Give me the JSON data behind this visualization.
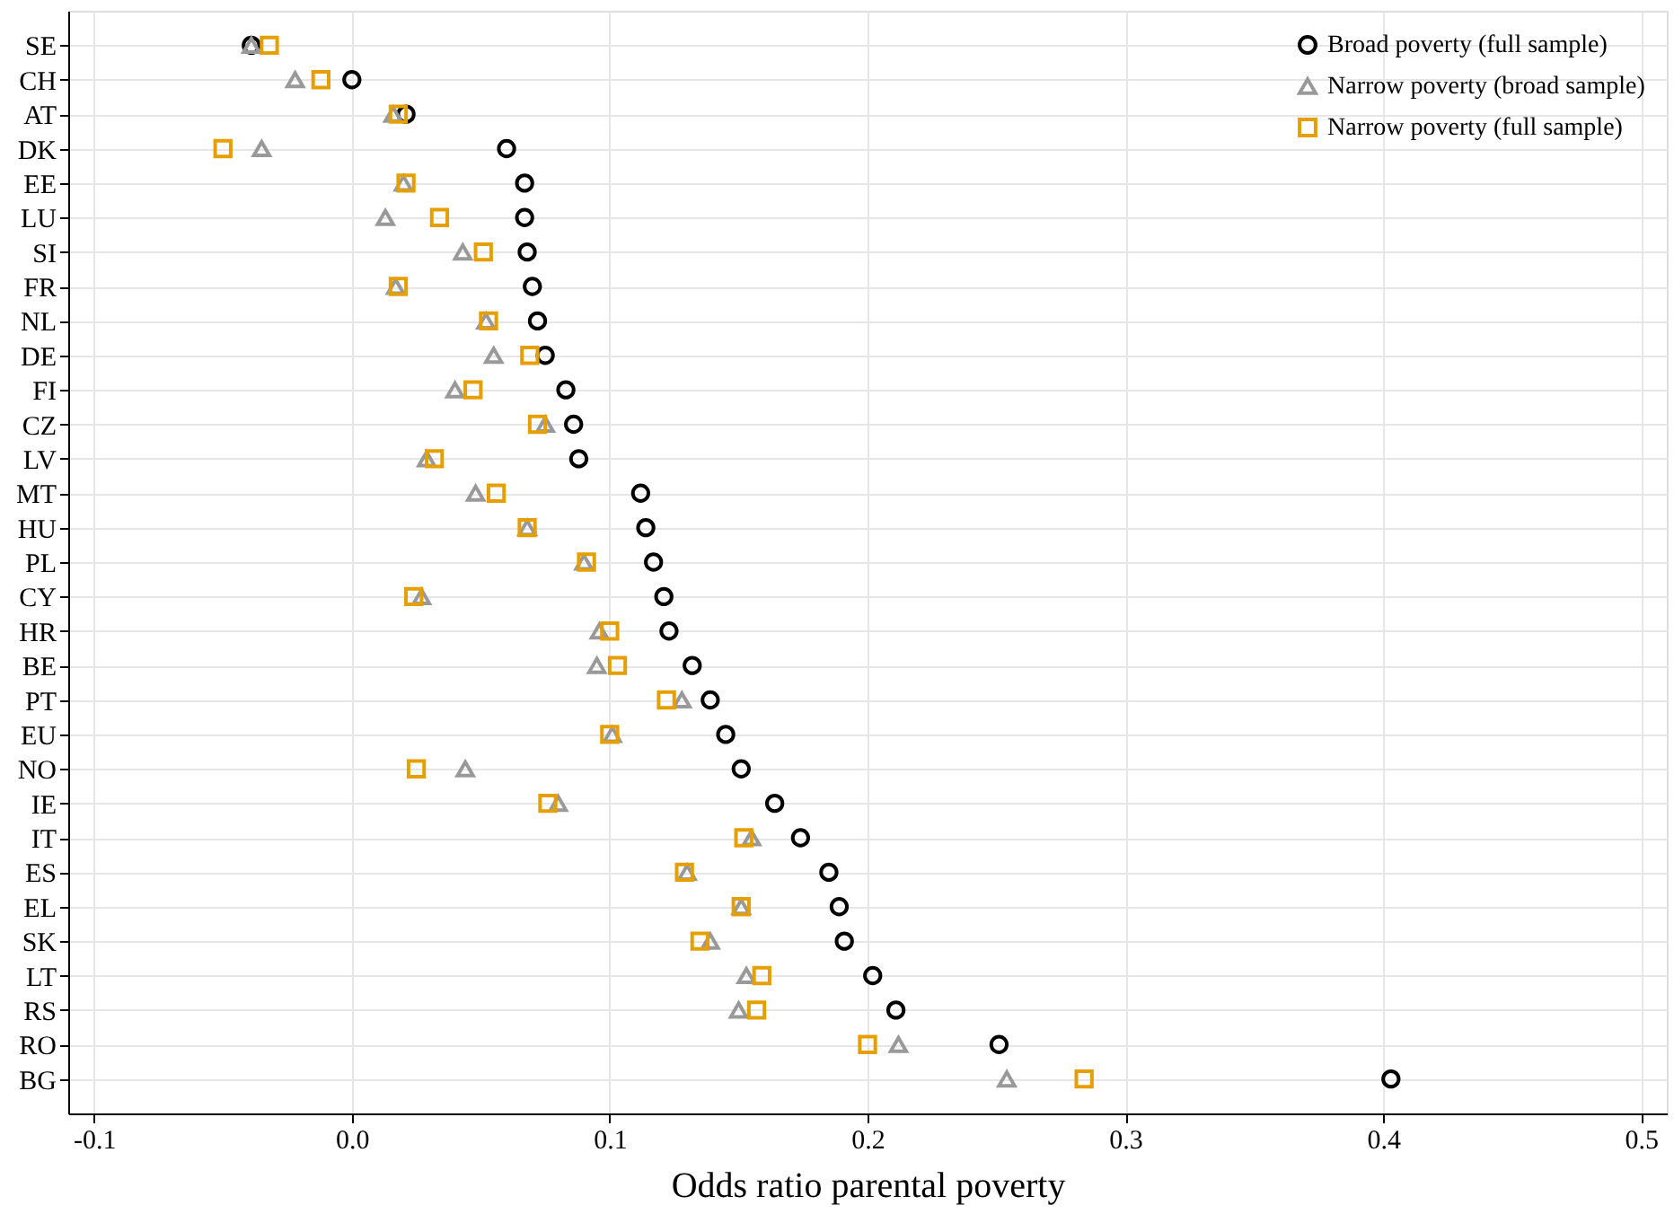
{
  "chart_data": {
    "type": "scatter",
    "xlabel": "Odds ratio parental poverty",
    "categories": [
      "SE",
      "CH",
      "AT",
      "DK",
      "EE",
      "LU",
      "SI",
      "FR",
      "NL",
      "DE",
      "FI",
      "CZ",
      "LV",
      "MT",
      "HU",
      "PL",
      "CY",
      "HR",
      "BE",
      "PT",
      "EU",
      "NO",
      "IE",
      "IT",
      "ES",
      "EL",
      "SK",
      "LT",
      "RS",
      "RO",
      "BG"
    ],
    "series": [
      {
        "name": "Broad poverty (full sample)",
        "color": "#000000",
        "marker": "circle",
        "values": [
          -0.039,
          0.0,
          0.021,
          0.06,
          0.067,
          0.067,
          0.068,
          0.07,
          0.072,
          0.075,
          0.083,
          0.086,
          0.088,
          0.112,
          0.114,
          0.117,
          0.121,
          0.123,
          0.132,
          0.139,
          0.145,
          0.151,
          0.164,
          0.174,
          0.185,
          0.189,
          0.191,
          0.202,
          0.211,
          0.251,
          0.403
        ]
      },
      {
        "name": "Narrow poverty (broad sample)",
        "color": "#999999",
        "marker": "triangle",
        "values": [
          -0.039,
          -0.022,
          0.016,
          -0.035,
          0.02,
          0.013,
          0.043,
          0.017,
          0.052,
          0.055,
          0.04,
          0.075,
          0.029,
          0.048,
          0.068,
          0.09,
          0.027,
          0.096,
          0.095,
          0.128,
          0.101,
          0.044,
          0.08,
          0.155,
          0.13,
          0.151,
          0.139,
          0.153,
          0.15,
          0.212,
          0.254
        ]
      },
      {
        "name": "Narrow poverty (full sample)",
        "color": "#e69f00",
        "marker": "square",
        "values": [
          -0.032,
          -0.012,
          0.018,
          -0.05,
          0.021,
          0.034,
          0.051,
          0.018,
          0.053,
          0.069,
          0.047,
          0.072,
          0.032,
          0.056,
          0.068,
          0.091,
          0.024,
          0.1,
          0.103,
          0.122,
          0.1,
          0.025,
          0.076,
          0.152,
          0.129,
          0.151,
          0.135,
          0.159,
          0.157,
          0.2,
          0.284
        ]
      }
    ],
    "xlim": [
      -0.11,
      0.51
    ],
    "xticks": [
      {
        "value": -0.1,
        "label": "-0.1"
      },
      {
        "value": 0,
        "label": "0.0"
      },
      {
        "value": 0.1,
        "label": "0.1"
      },
      {
        "value": 0.2,
        "label": "0.2"
      },
      {
        "value": 0.3,
        "label": "0.3"
      },
      {
        "value": 0.4,
        "label": "0.4"
      },
      {
        "value": 0.5,
        "label": "0.5"
      }
    ],
    "orientation": "horizontal",
    "grid": true,
    "legend": "top right"
  }
}
